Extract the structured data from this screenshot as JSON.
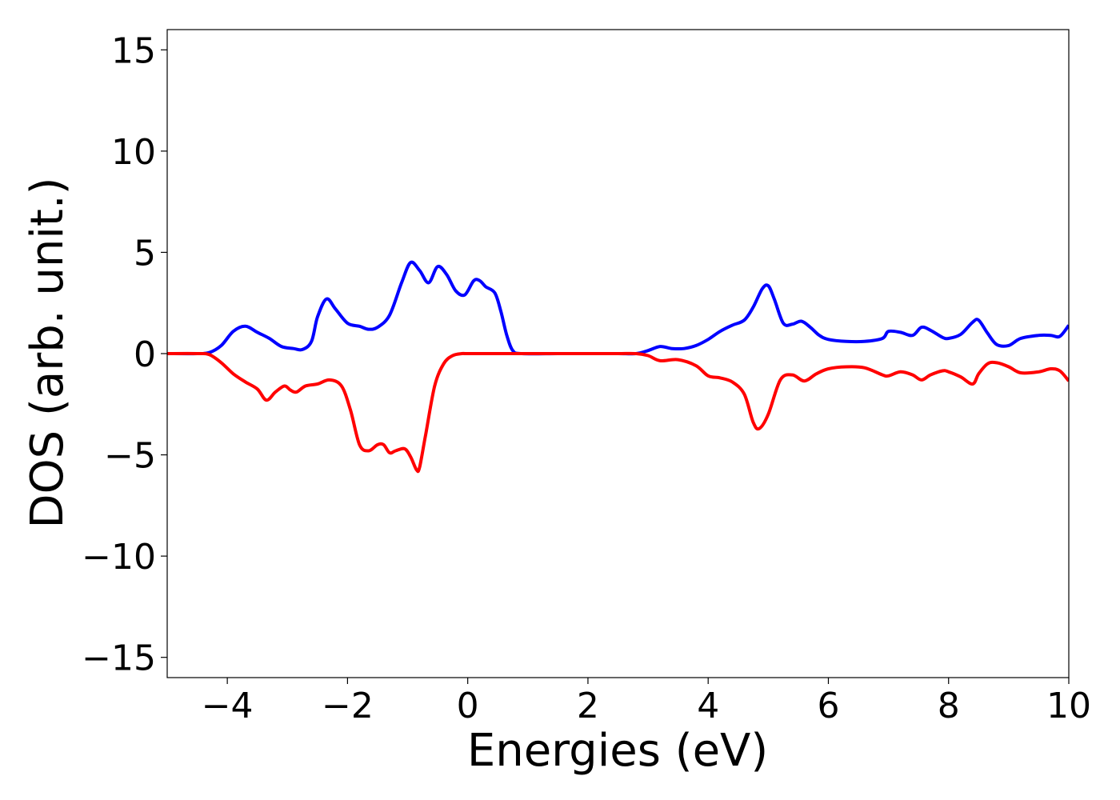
{
  "chart_data": {
    "type": "line",
    "title": "",
    "xlabel": "Energies (eV)",
    "ylabel": "DOS (arb. unit.)",
    "xlim": [
      -5,
      10
    ],
    "ylim": [
      -16,
      16
    ],
    "xticks": [
      -4,
      -2,
      0,
      2,
      4,
      6,
      8,
      10
    ],
    "xtick_labels": [
      "−4",
      "−2",
      "0",
      "2",
      "4",
      "6",
      "8",
      "10"
    ],
    "yticks": [
      15,
      10,
      5,
      0,
      -5,
      -10,
      -15
    ],
    "ytick_labels": [
      "15",
      "10",
      "5",
      "0",
      "−5",
      "−10",
      "−15"
    ],
    "grid": false,
    "legend": "none",
    "series": [
      {
        "color": "#0000ff",
        "x": [
          -5.0,
          -4.5,
          -4.3,
          -4.1,
          -3.9,
          -3.7,
          -3.5,
          -3.3,
          -3.1,
          -2.9,
          -2.75,
          -2.6,
          -2.5,
          -2.35,
          -2.2,
          -2.0,
          -1.8,
          -1.65,
          -1.5,
          -1.3,
          -1.1,
          -0.95,
          -0.8,
          -0.65,
          -0.5,
          -0.35,
          -0.2,
          -0.05,
          0.1,
          0.2,
          0.3,
          0.45,
          0.55,
          0.65,
          0.75,
          0.9,
          1.5,
          2.0,
          2.5,
          2.8,
          3.0,
          3.2,
          3.4,
          3.6,
          3.8,
          4.0,
          4.2,
          4.4,
          4.6,
          4.75,
          4.9,
          5.0,
          5.1,
          5.25,
          5.4,
          5.55,
          5.7,
          5.85,
          6.0,
          6.3,
          6.6,
          6.9,
          7.0,
          7.2,
          7.4,
          7.55,
          7.7,
          7.9,
          8.0,
          8.2,
          8.4,
          8.5,
          8.65,
          8.8,
          9.0,
          9.2,
          9.5,
          9.7,
          9.85,
          10.0
        ],
        "y": [
          0.0,
          0.0,
          0.05,
          0.4,
          1.1,
          1.35,
          1.05,
          0.75,
          0.35,
          0.25,
          0.2,
          0.6,
          1.8,
          2.7,
          2.2,
          1.5,
          1.35,
          1.2,
          1.3,
          1.9,
          3.5,
          4.5,
          4.1,
          3.5,
          4.3,
          3.9,
          3.1,
          2.9,
          3.6,
          3.6,
          3.3,
          3.0,
          2.1,
          0.9,
          0.15,
          0.0,
          0.0,
          0.0,
          0.0,
          0.0,
          0.15,
          0.35,
          0.25,
          0.25,
          0.4,
          0.7,
          1.1,
          1.4,
          1.65,
          2.3,
          3.2,
          3.35,
          2.7,
          1.5,
          1.45,
          1.6,
          1.3,
          0.9,
          0.7,
          0.6,
          0.6,
          0.75,
          1.1,
          1.05,
          0.9,
          1.3,
          1.15,
          0.8,
          0.75,
          0.95,
          1.55,
          1.65,
          1.0,
          0.45,
          0.4,
          0.75,
          0.9,
          0.9,
          0.85,
          1.4
        ]
      },
      {
        "color": "#ff0000",
        "x": [
          -5.0,
          -4.5,
          -4.3,
          -4.1,
          -3.9,
          -3.7,
          -3.5,
          -3.35,
          -3.2,
          -3.05,
          -2.95,
          -2.85,
          -2.7,
          -2.5,
          -2.3,
          -2.1,
          -1.95,
          -1.8,
          -1.65,
          -1.5,
          -1.4,
          -1.3,
          -1.2,
          -1.05,
          -0.95,
          -0.85,
          -0.8,
          -0.7,
          -0.55,
          -0.4,
          -0.25,
          -0.1,
          0.0,
          0.5,
          1.0,
          2.0,
          2.5,
          2.8,
          3.0,
          3.2,
          3.5,
          3.8,
          4.0,
          4.2,
          4.4,
          4.6,
          4.75,
          4.85,
          5.0,
          5.2,
          5.4,
          5.6,
          5.8,
          6.0,
          6.3,
          6.6,
          6.9,
          7.0,
          7.2,
          7.4,
          7.55,
          7.7,
          7.9,
          8.0,
          8.2,
          8.4,
          8.5,
          8.65,
          8.8,
          9.0,
          9.2,
          9.5,
          9.7,
          9.85,
          10.0
        ],
        "y": [
          0.0,
          0.0,
          -0.05,
          -0.45,
          -1.0,
          -1.4,
          -1.75,
          -2.3,
          -1.9,
          -1.6,
          -1.8,
          -1.9,
          -1.6,
          -1.5,
          -1.3,
          -1.6,
          -2.8,
          -4.5,
          -4.8,
          -4.5,
          -4.5,
          -4.9,
          -4.8,
          -4.7,
          -5.1,
          -5.75,
          -5.6,
          -4.0,
          -1.6,
          -0.5,
          -0.1,
          0.0,
          0.0,
          0.0,
          0.0,
          0.0,
          0.0,
          0.0,
          -0.1,
          -0.35,
          -0.3,
          -0.6,
          -1.1,
          -1.2,
          -1.4,
          -2.0,
          -3.4,
          -3.7,
          -3.0,
          -1.3,
          -1.05,
          -1.35,
          -1.0,
          -0.75,
          -0.65,
          -0.7,
          -1.05,
          -1.1,
          -0.9,
          -1.05,
          -1.3,
          -1.05,
          -0.85,
          -0.9,
          -1.15,
          -1.5,
          -1.0,
          -0.5,
          -0.45,
          -0.65,
          -0.95,
          -0.9,
          -0.75,
          -0.85,
          -1.35
        ]
      }
    ]
  }
}
